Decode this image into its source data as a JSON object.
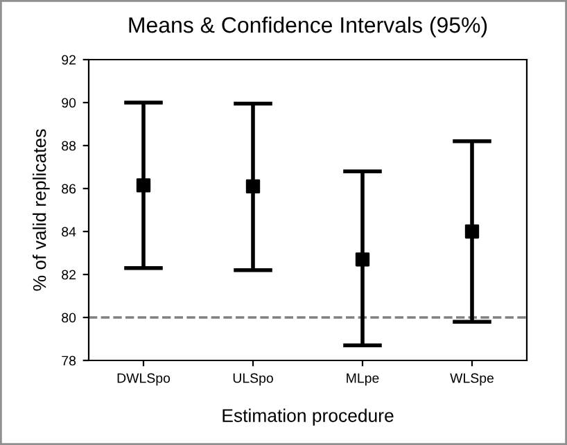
{
  "chart_data": {
    "type": "scatter",
    "title": "Means & Confidence Intervals (95%)",
    "xlabel": "Estimation procedure",
    "ylabel": "% of valid replicates",
    "categories": [
      "DWLSpo",
      "ULSpo",
      "MLpe",
      "WLSpe"
    ],
    "color": "#000000",
    "values": [
      86.15,
      86.1,
      82.7,
      84.0
    ],
    "errors": [
      [
        82.3,
        90.0
      ],
      [
        82.2,
        89.95
      ],
      [
        78.7,
        86.8
      ],
      [
        79.8,
        88.2
      ]
    ],
    "marker": "square",
    "ylim": [
      78,
      92
    ],
    "yticks": [
      78,
      80,
      82,
      84,
      86,
      88,
      90,
      92
    ],
    "grid": false,
    "legend": false,
    "ref_lines": [
      {
        "axis": "y",
        "value": 80,
        "color": "#808080",
        "line_style": "dashed"
      }
    ]
  }
}
